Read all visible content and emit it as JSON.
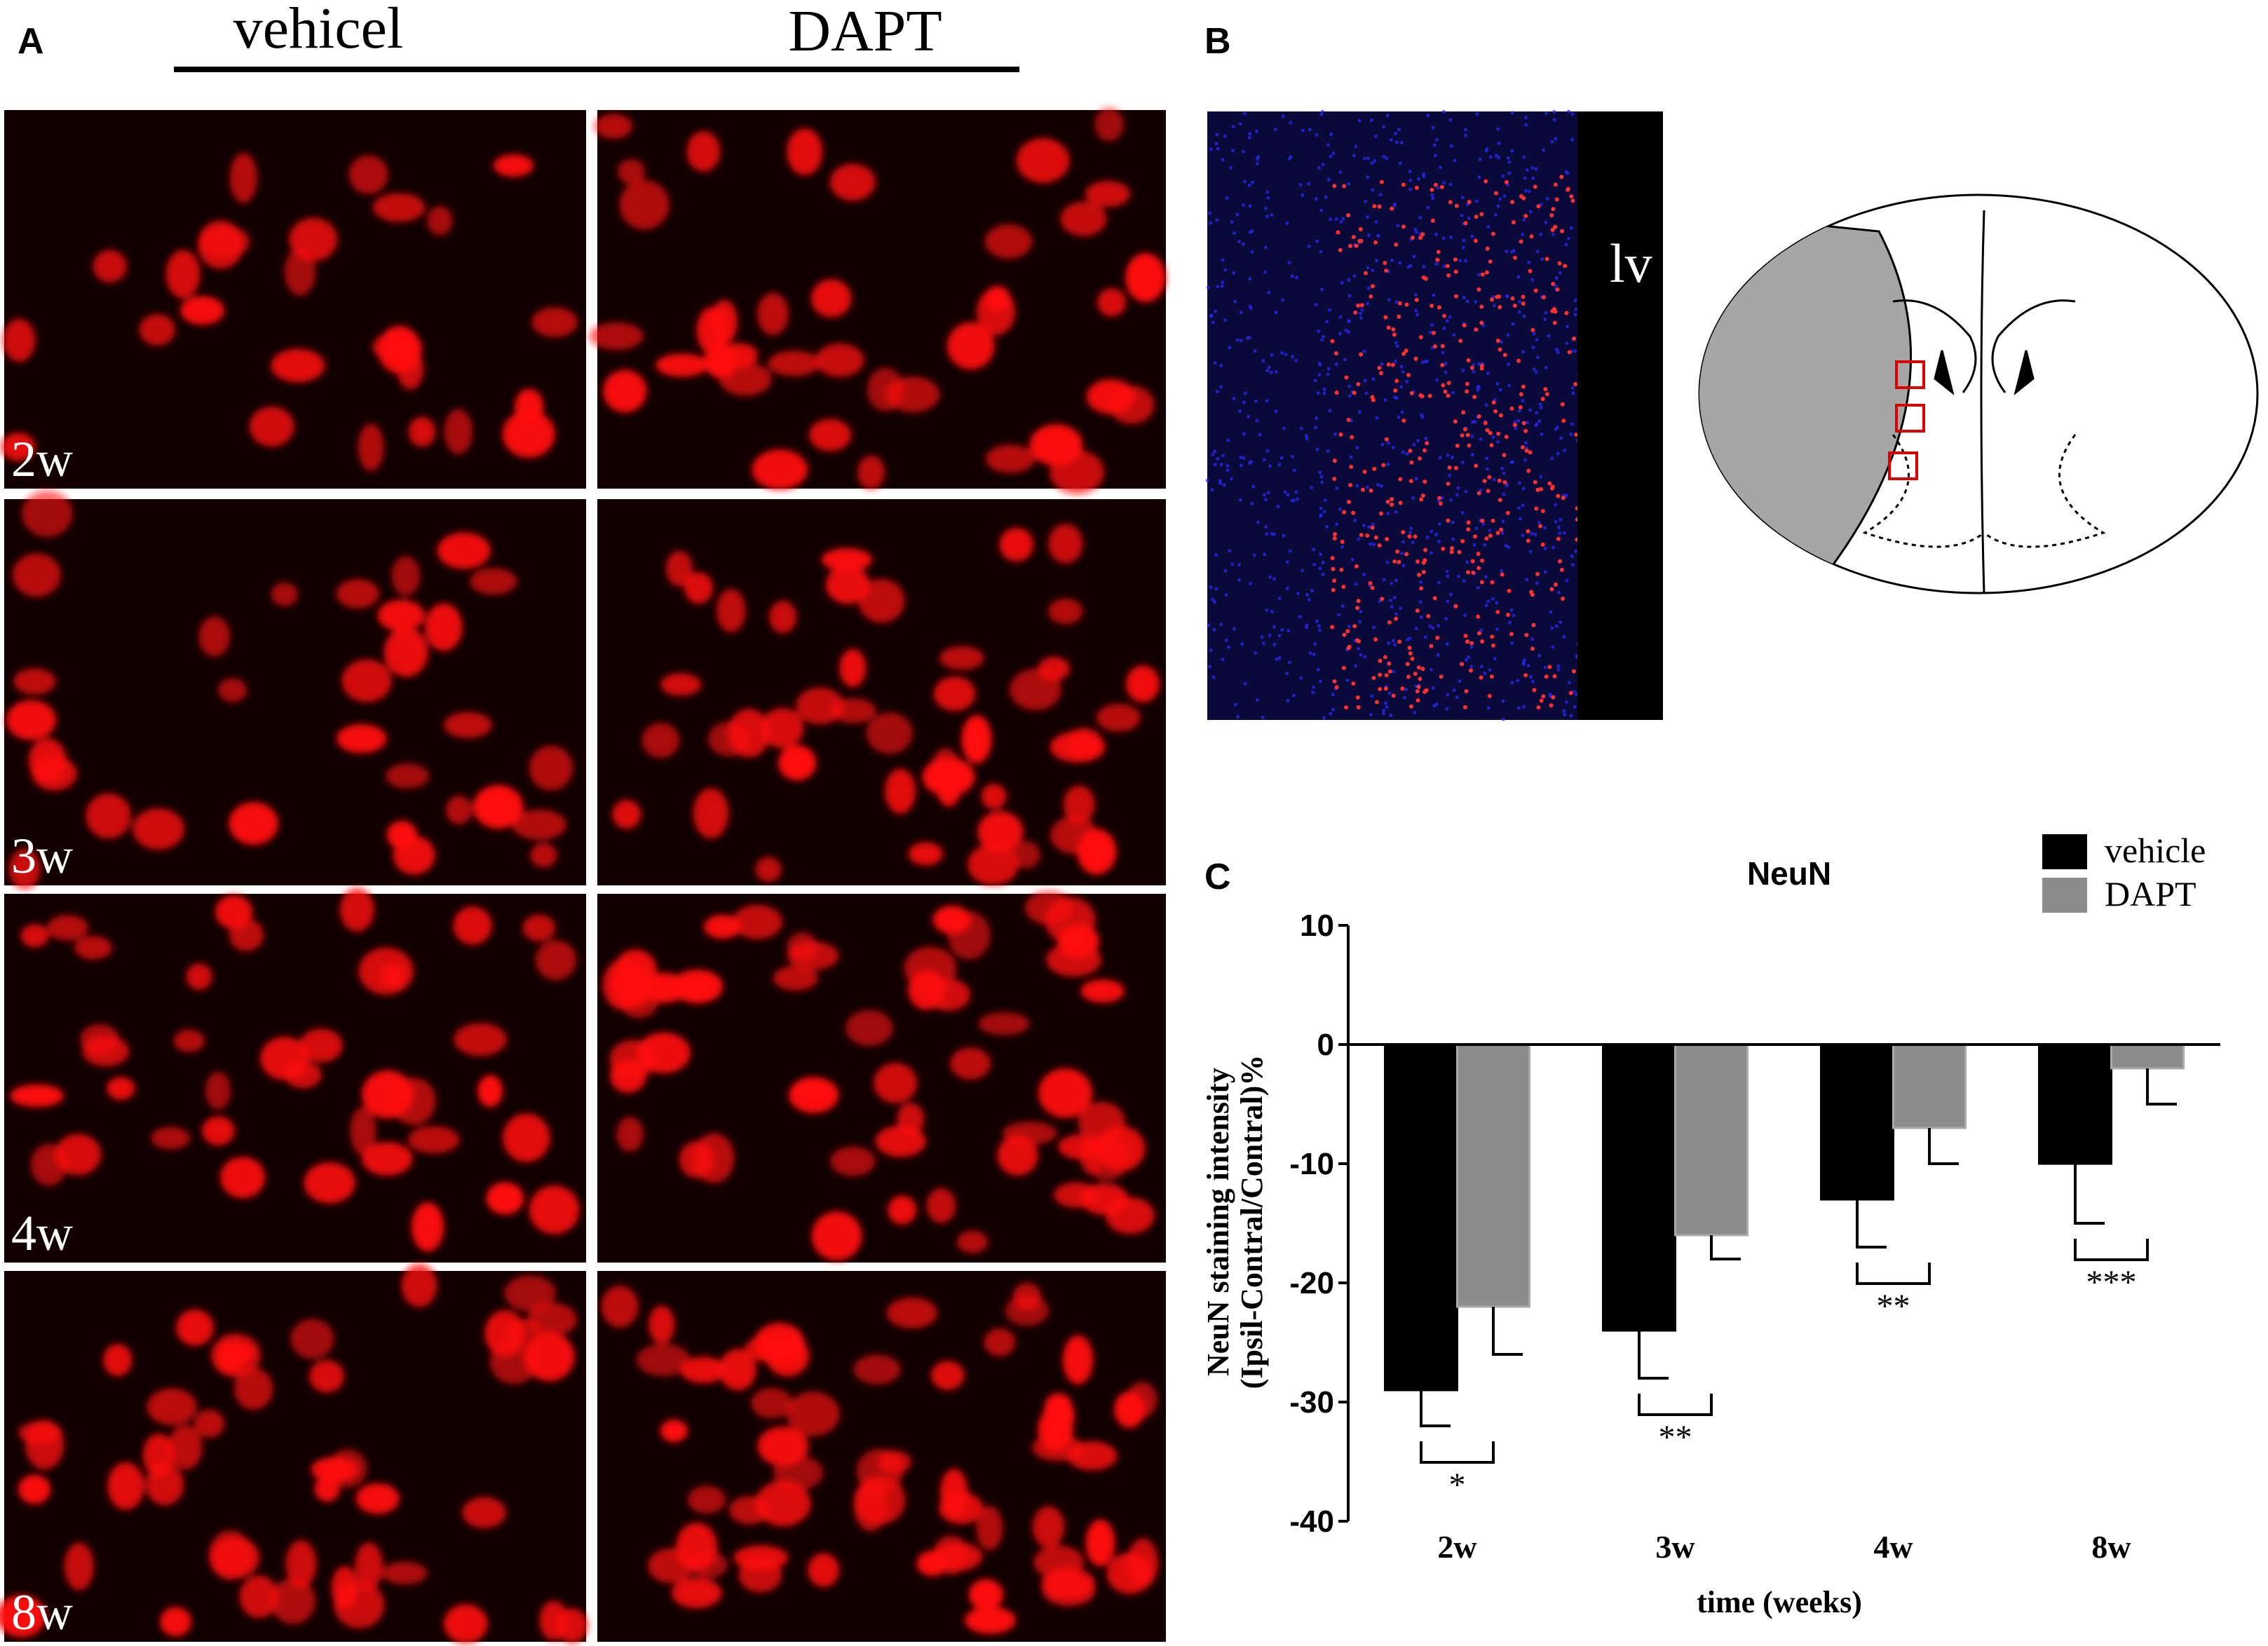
{
  "panel_labels": [
    "A",
    "B",
    "C"
  ],
  "panel_a": {
    "columns": [
      "vehicel",
      "DAPT"
    ],
    "rows": [
      "2w",
      "3w",
      "4w",
      "8w"
    ]
  },
  "panel_b": {
    "label": "lv"
  },
  "chart_data": {
    "type": "bar",
    "title": "NeuN",
    "categories": [
      "2w",
      "3w",
      "4w",
      "8w"
    ],
    "series": [
      {
        "name": "vehicle",
        "color": "#000000",
        "values": [
          -29,
          -24,
          -13,
          -10
        ],
        "errors": [
          3,
          4,
          4,
          5
        ]
      },
      {
        "name": "DAPT",
        "color": "#8c8c8c",
        "values": [
          -22,
          -16,
          -7,
          -2
        ],
        "errors": [
          4,
          2,
          3,
          3
        ]
      }
    ],
    "significance": [
      "*",
      "**",
      "**",
      "***"
    ],
    "y_label": [
      "NeuN staining intensity",
      "(Ipsil-Contral/Contral)%"
    ],
    "x_label": "time (weeks)",
    "ylim": [
      -40,
      10
    ],
    "yticks": [
      -40,
      -30,
      -20,
      -10,
      0,
      10
    ]
  }
}
